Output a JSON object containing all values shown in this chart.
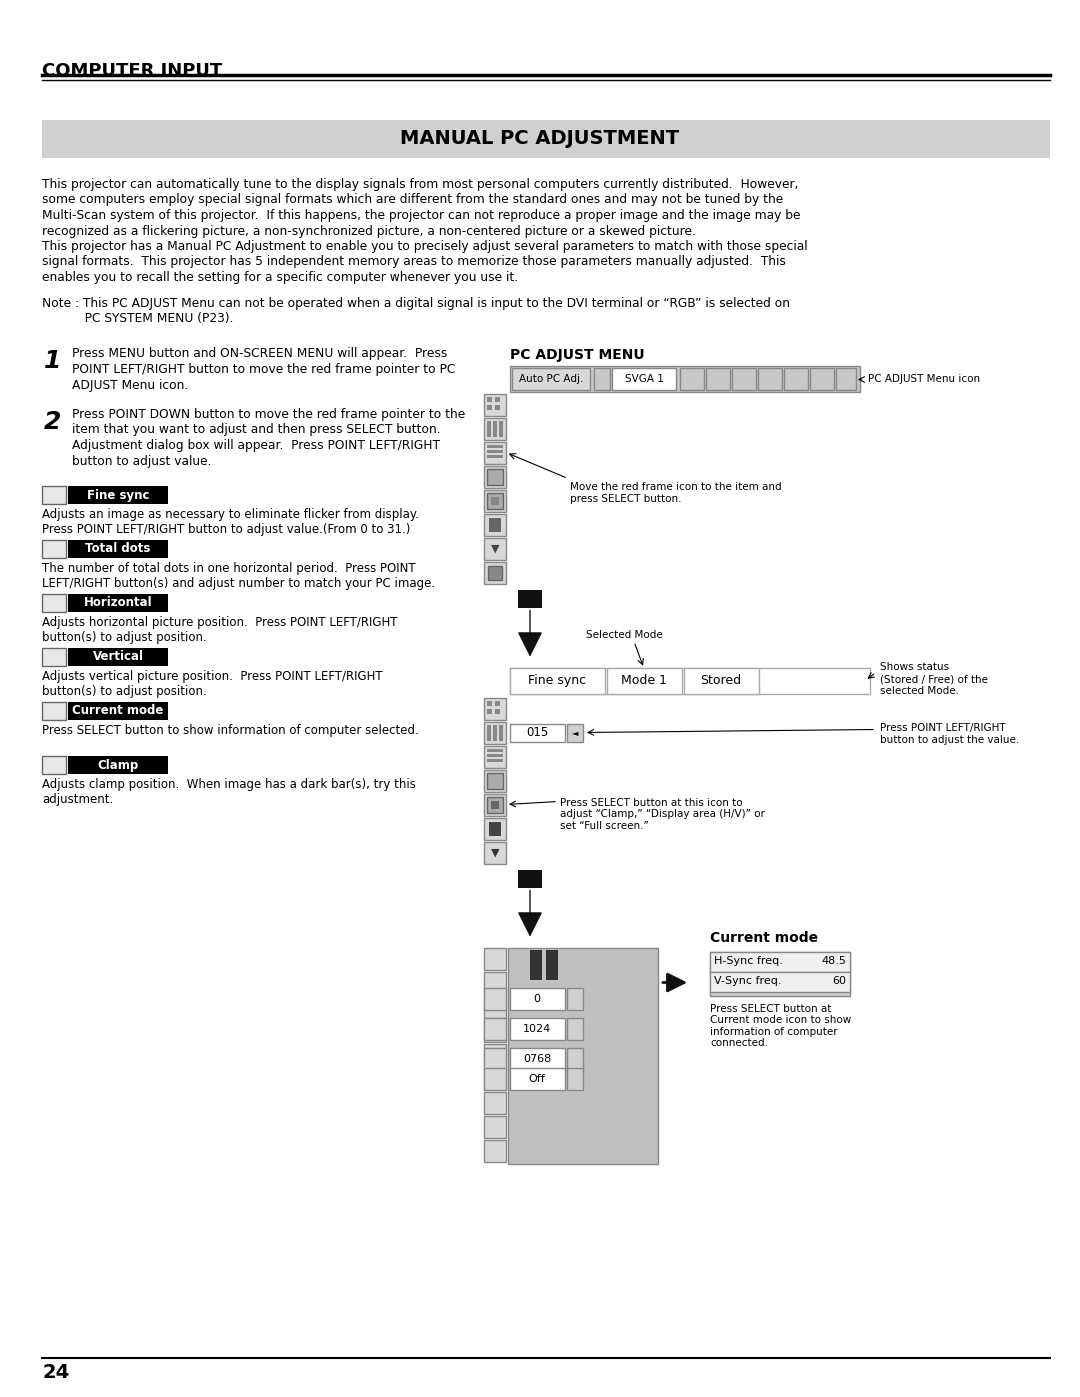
{
  "page_title": "COMPUTER INPUT",
  "section_title": "MANUAL PC ADJUSTMENT",
  "page_number": "24",
  "background_color": "#ffffff",
  "body_text_lines": [
    "This projector can automatically tune to the display signals from most personal computers currently distributed.  However,",
    "some computers employ special signal formats which are different from the standard ones and may not be tuned by the",
    "Multi-Scan system of this projector.  If this happens, the projector can not reproduce a proper image and the image may be",
    "recognized as a flickering picture, a non-synchronized picture, a non-centered picture or a skewed picture.",
    "This projector has a Manual PC Adjustment to enable you to precisely adjust several parameters to match with those special",
    "signal formats.  This projector has 5 independent memory areas to memorize those parameters manually adjusted.  This",
    "enables you to recall the setting for a specific computer whenever you use it."
  ],
  "note_line1": "Note : This PC ADJUST Menu can not be operated when a digital signal is input to the DVI terminal or “RGB” is selected on",
  "note_line2": "           PC SYSTEM MENU (P23).",
  "step1_num": "1",
  "step1_lines": [
    "Press MENU button and ON-SCREEN MENU will appear.  Press",
    "POINT LEFT/RIGHT button to move the red frame pointer to PC",
    "ADJUST Menu icon."
  ],
  "step2_num": "2",
  "step2_lines": [
    "Press POINT DOWN button to move the red frame pointer to the",
    "item that you want to adjust and then press SELECT button.",
    "Adjustment dialog box will appear.  Press POINT LEFT/RIGHT",
    "button to adjust value."
  ],
  "items": [
    {
      "label": "Fine sync",
      "desc_lines": [
        "Adjusts an image as necessary to eliminate flicker from display.",
        "Press POINT LEFT/RIGHT button to adjust value.(From 0 to 31.)"
      ]
    },
    {
      "label": "Total dots",
      "desc_lines": [
        "The number of total dots in one horizontal period.  Press POINT",
        "LEFT/RIGHT button(s) and adjust number to match your PC image."
      ]
    },
    {
      "label": "Horizontal",
      "desc_lines": [
        "Adjusts horizontal picture position.  Press POINT LEFT/RIGHT",
        "button(s) to adjust position."
      ]
    },
    {
      "label": "Vertical",
      "desc_lines": [
        "Adjusts vertical picture position.  Press POINT LEFT/RIGHT",
        "button(s) to adjust position."
      ]
    },
    {
      "label": "Current mode",
      "desc_lines": [
        "Press SELECT button to show information of computer selected."
      ]
    },
    {
      "label": "Clamp",
      "desc_lines": [
        "Adjusts clamp position.  When image has a dark bar(s), try this",
        "adjustment."
      ]
    }
  ],
  "rc_title": "PC ADJUST MENU",
  "menu_btn1": "Auto PC Adj.",
  "menu_btn2": "SVGA 1",
  "annot_menu_icon": "PC ADJUST Menu icon",
  "annot_move": "Move the red frame icon to the item and\npress SELECT button.",
  "annot_selmode": "Selected Mode",
  "annot_status": "Shows status\n(Stored / Free) of the\nselected Mode.",
  "annot_lr": "Press POINT LEFT/RIGHT\nbutton to adjust the value.",
  "annot_select": "Press SELECT button at this icon to\nadjust “Clamp,” “Display area (H/V)” or\nset “Full screen.”",
  "annot_cm_title": "Current mode",
  "annot_cm_body": "Press SELECT button at\nCurrent mode icon to show\ninformation of computer\nconnected.",
  "fs_label": "Fine sync",
  "m1_label": "Mode 1",
  "st_label": "Stored",
  "val_015": "015",
  "val_0": "0",
  "val_1024": "1024",
  "val_0768": "0768",
  "val_off": "Off",
  "hs_label": "H-Sync freq.",
  "hs_val": "48.5",
  "vs_label": "V-Sync freq.",
  "vs_val": "60"
}
